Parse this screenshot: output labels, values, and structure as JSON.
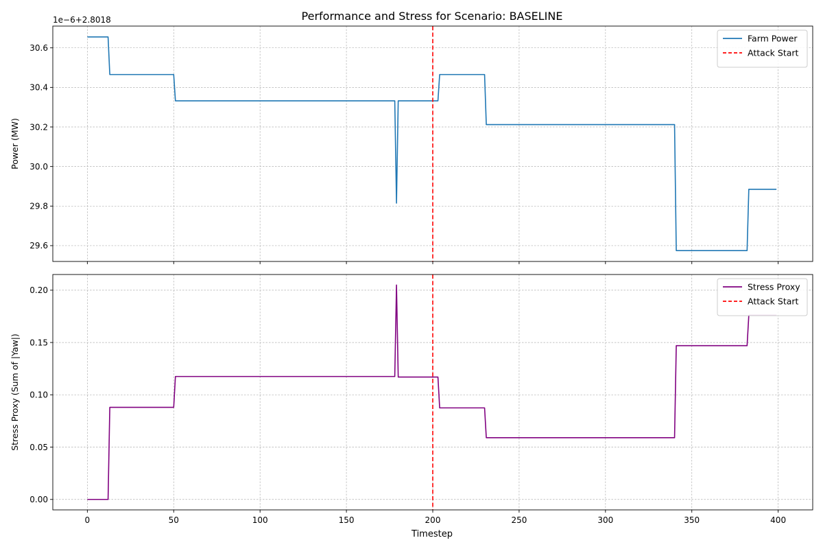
{
  "figure": {
    "title": "Performance and Stress for Scenario: BASELINE",
    "xlabel": "Timestep"
  },
  "chart_data": [
    {
      "type": "line",
      "ylabel": "Power (MW)",
      "offset_text": "1e−6+2.8018",
      "xlim": [
        -20,
        420
      ],
      "ylim": [
        29.52,
        30.71
      ],
      "x_ticks": [
        0,
        50,
        100,
        150,
        200,
        250,
        300,
        350,
        400
      ],
      "x_tick_labels_visible": false,
      "y_ticks": [
        29.6,
        29.8,
        30.0,
        30.2,
        30.4,
        30.6
      ],
      "y_tick_labels": [
        "29.6",
        "29.8",
        "30.0",
        "30.2",
        "30.4",
        "30.6"
      ],
      "grid": true,
      "legend_position": "top-right",
      "series": [
        {
          "name": "Farm Power",
          "color": "#1f77b4",
          "style": "solid",
          "points": [
            [
              0,
              30.655
            ],
            [
              12,
              30.655
            ],
            [
              13,
              30.465
            ],
            [
              50,
              30.465
            ],
            [
              51,
              30.332
            ],
            [
              178,
              30.332
            ],
            [
              179,
              29.815
            ],
            [
              180,
              30.332
            ],
            [
              203,
              30.332
            ],
            [
              204,
              30.465
            ],
            [
              230,
              30.465
            ],
            [
              231,
              30.212
            ],
            [
              340,
              30.212
            ],
            [
              341,
              29.575
            ],
            [
              382,
              29.575
            ],
            [
              383,
              29.885
            ],
            [
              399,
              29.885
            ]
          ]
        }
      ],
      "vlines": [
        {
          "name": "Attack Start",
          "x": 200,
          "color": "#ff0000",
          "style": "dashed"
        }
      ]
    },
    {
      "type": "line",
      "ylabel": "Stress Proxy (Sum of |Yaw|)",
      "xlim": [
        -20,
        420
      ],
      "ylim": [
        -0.01,
        0.215
      ],
      "x_ticks": [
        0,
        50,
        100,
        150,
        200,
        250,
        300,
        350,
        400
      ],
      "x_tick_labels": [
        "0",
        "50",
        "100",
        "150",
        "200",
        "250",
        "300",
        "350",
        "400"
      ],
      "y_ticks": [
        0.0,
        0.05,
        0.1,
        0.15,
        0.2
      ],
      "y_tick_labels": [
        "0.00",
        "0.05",
        "0.10",
        "0.15",
        "0.20"
      ],
      "grid": true,
      "legend_position": "top-right",
      "series": [
        {
          "name": "Stress Proxy",
          "color": "#800080",
          "style": "solid",
          "points": [
            [
              0,
              0.0
            ],
            [
              12,
              0.0
            ],
            [
              13,
              0.088
            ],
            [
              50,
              0.088
            ],
            [
              51,
              0.1175
            ],
            [
              178,
              0.1175
            ],
            [
              179,
              0.205
            ],
            [
              180,
              0.117
            ],
            [
              203,
              0.117
            ],
            [
              204,
              0.0875
            ],
            [
              230,
              0.0875
            ],
            [
              231,
              0.059
            ],
            [
              340,
              0.059
            ],
            [
              341,
              0.147
            ],
            [
              382,
              0.147
            ],
            [
              383,
              0.176
            ],
            [
              399,
              0.176
            ]
          ]
        }
      ],
      "vlines": [
        {
          "name": "Attack Start",
          "x": 200,
          "color": "#ff0000",
          "style": "dashed"
        }
      ]
    }
  ]
}
